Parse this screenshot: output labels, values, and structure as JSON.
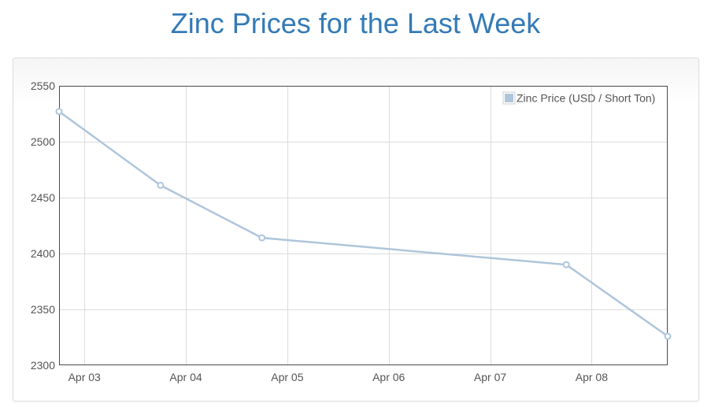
{
  "page": {
    "title": "Zinc Prices for the Last Week"
  },
  "chart_data": {
    "type": "line",
    "title": "Zinc Prices for the Last Week",
    "xlabel": "",
    "ylabel": "",
    "x_dates": [
      "Apr 02 18:00",
      "Apr 03 18:00",
      "Apr 04 18:00",
      "Apr 07 18:00",
      "Apr 08 18:00"
    ],
    "x_tick_labels": [
      "Apr 03",
      "Apr 04",
      "Apr 05",
      "Apr 06",
      "Apr 07",
      "Apr 08"
    ],
    "xlim": [
      "Apr 02 18:00",
      "Apr 08 18:00"
    ],
    "y_ticks": [
      2300,
      2350,
      2400,
      2450,
      2500,
      2550
    ],
    "ylim": [
      2300,
      2550
    ],
    "grid": true,
    "legend_position": "top-right",
    "series": [
      {
        "name": "Zinc Price (USD / Short Ton)",
        "color": "#afc5db",
        "values": [
          2527,
          2461,
          2414,
          2390,
          2326
        ]
      }
    ]
  }
}
